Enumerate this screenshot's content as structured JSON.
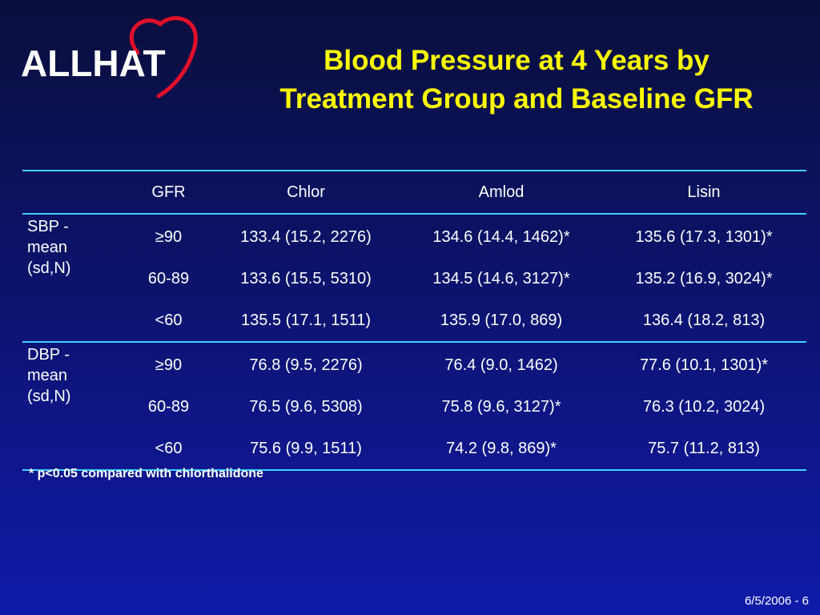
{
  "logo": {
    "text": "ALLHAT",
    "icon": "heart-outline-icon",
    "icon_color": "#e0102a"
  },
  "title": {
    "line1": "Blood Pressure at 4 Years by",
    "line2": "Treatment Group and Baseline GFR"
  },
  "colors": {
    "title": "#ffff00",
    "rule": "#3fd0ff",
    "background_top": "#0a0e3c",
    "background_bottom": "#0f1aa8"
  },
  "table": {
    "headers": [
      "",
      "GFR",
      "Chlor",
      "Amlod",
      "Lisin"
    ],
    "groups": [
      {
        "label_lines": [
          "SBP -",
          "mean",
          "(sd,N)"
        ],
        "rows": [
          {
            "gfr": "≥90",
            "chlor": "133.4 (15.2, 2276)",
            "amlod": "134.6 (14.4, 1462)*",
            "lisin": "135.6 (17.3, 1301)*"
          },
          {
            "gfr": "60-89",
            "chlor": "133.6 (15.5, 5310)",
            "amlod": "134.5 (14.6, 3127)*",
            "lisin": "135.2 (16.9, 3024)*"
          },
          {
            "gfr": "<60",
            "chlor": "135.5 (17.1, 1511)",
            "amlod": "135.9 (17.0, 869)",
            "lisin": "136.4 (18.2, 813)"
          }
        ]
      },
      {
        "label_lines": [
          "DBP -",
          "mean",
          "(sd,N)"
        ],
        "rows": [
          {
            "gfr": "≥90",
            "chlor": "76.8 (9.5, 2276)",
            "amlod": "76.4 (9.0, 1462)",
            "lisin": "77.6 (10.1, 1301)*"
          },
          {
            "gfr": "60-89",
            "chlor": "76.5 (9.6, 5308)",
            "amlod": "75.8 (9.6, 3127)*",
            "lisin": "76.3 (10.2, 3024)"
          },
          {
            "gfr": "<60",
            "chlor": "75.6 (9.9, 1511)",
            "amlod": "74.2 (9.8, 869)*",
            "lisin": "75.7 (11.2, 813)"
          }
        ]
      }
    ]
  },
  "footnote": "* p<0.05 compared with chlorthalidone",
  "footer": "6/5/2006 - 6"
}
